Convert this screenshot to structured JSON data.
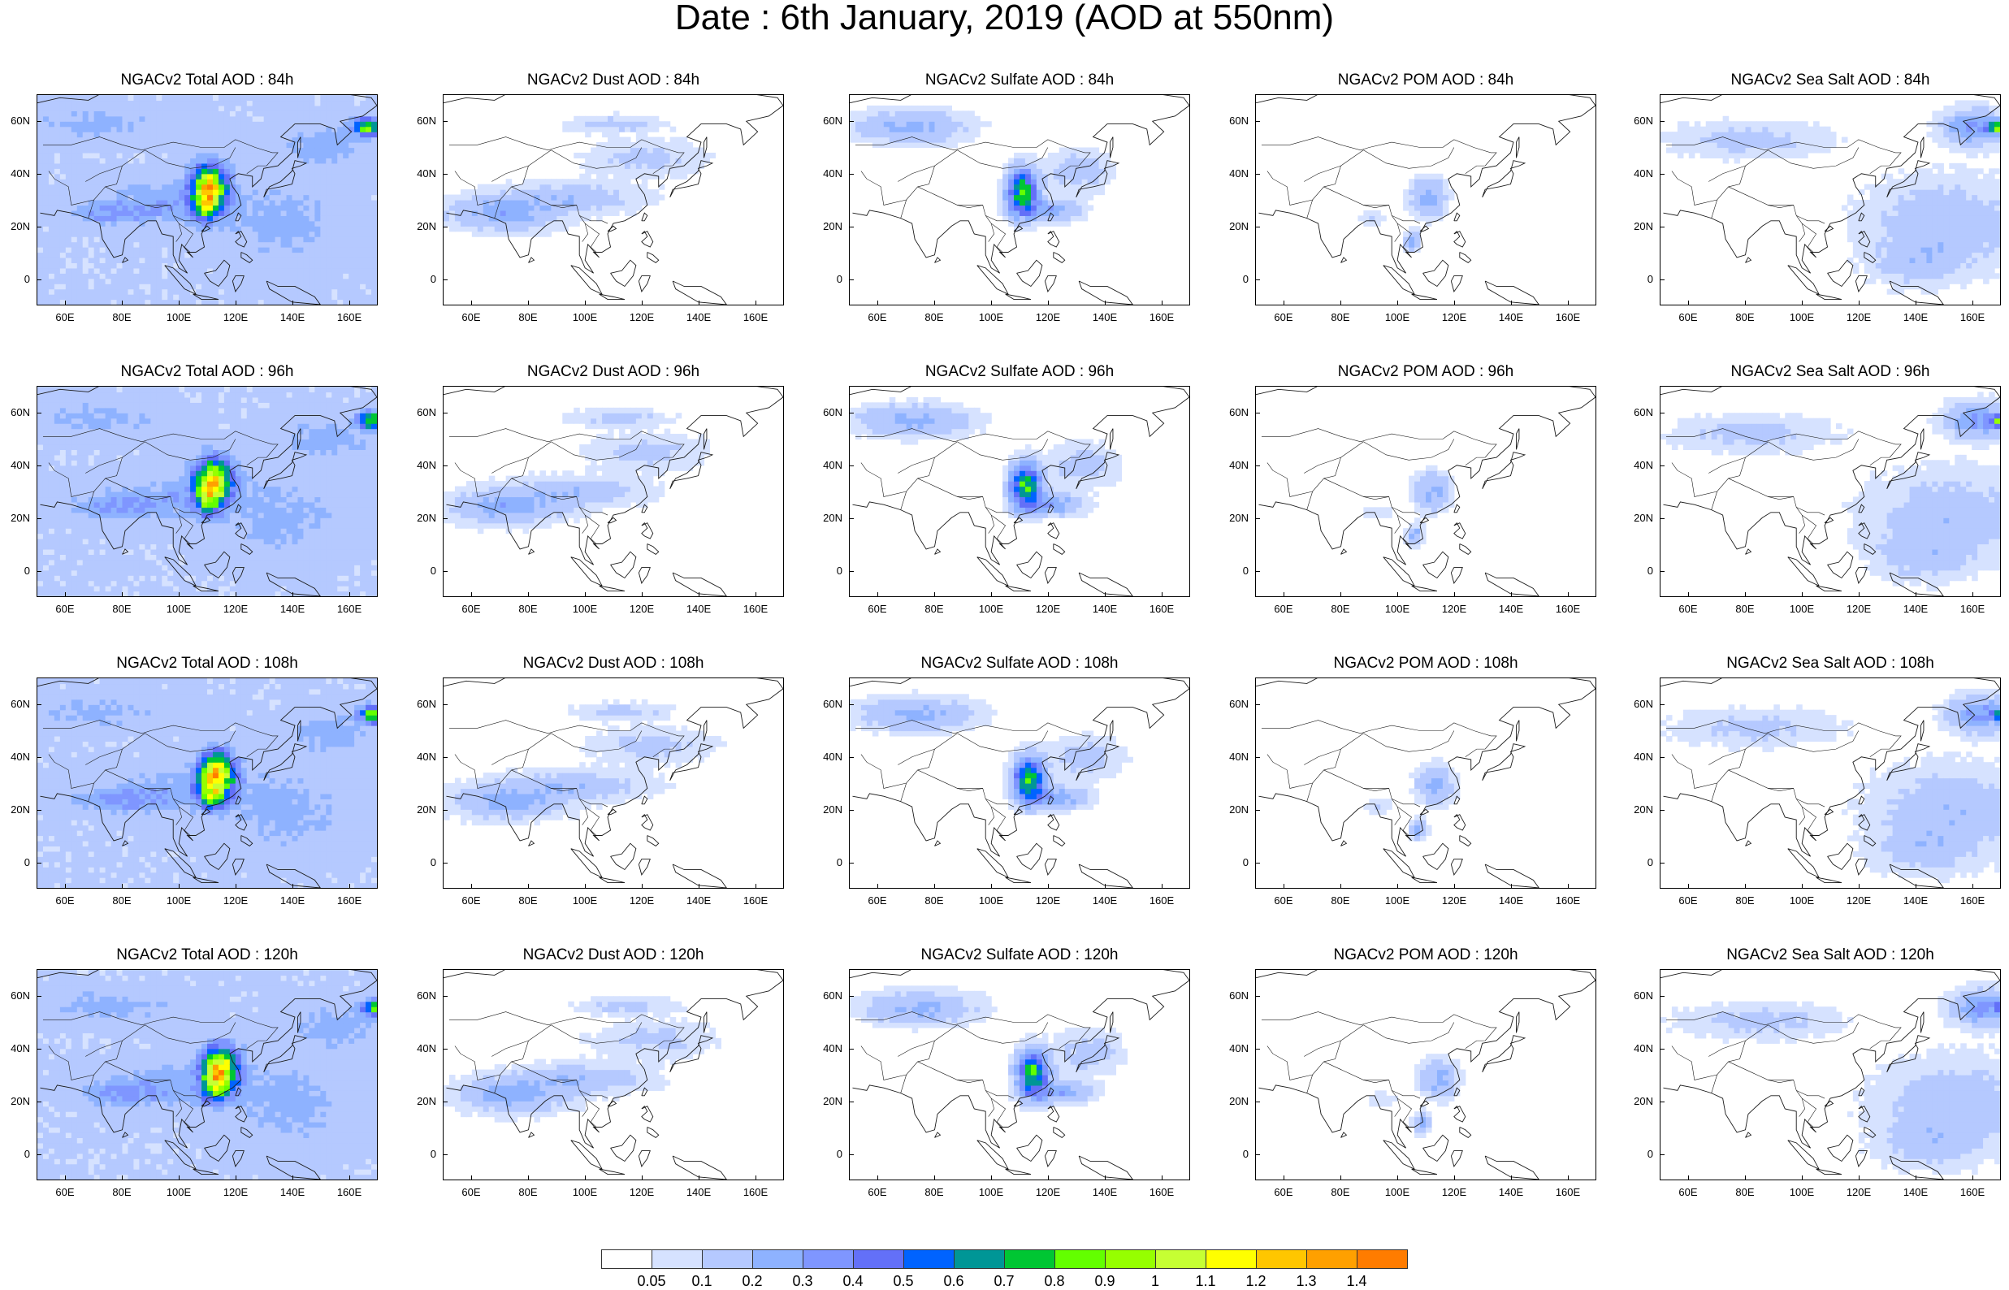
{
  "title": "Date : 6th January, 2019 (AOD at 550nm)",
  "lat_ticks": [
    "60N",
    "40N",
    "20N",
    "0"
  ],
  "lon_ticks": [
    "60E",
    "80E",
    "100E",
    "120E",
    "140E",
    "160E"
  ],
  "panels": [
    {
      "title": "NGACv2 Total AOD : 84h",
      "species": "total",
      "hour": 84
    },
    {
      "title": "NGACv2 Dust AOD : 84h",
      "species": "dust",
      "hour": 84
    },
    {
      "title": "NGACv2 Sulfate AOD : 84h",
      "species": "sulfate",
      "hour": 84
    },
    {
      "title": "NGACv2 POM AOD : 84h",
      "species": "pom",
      "hour": 84
    },
    {
      "title": "NGACv2 Sea Salt AOD : 84h",
      "species": "seasalt",
      "hour": 84
    },
    {
      "title": "NGACv2 Total AOD : 96h",
      "species": "total",
      "hour": 96
    },
    {
      "title": "NGACv2 Dust AOD : 96h",
      "species": "dust",
      "hour": 96
    },
    {
      "title": "NGACv2 Sulfate AOD : 96h",
      "species": "sulfate",
      "hour": 96
    },
    {
      "title": "NGACv2 POM AOD : 96h",
      "species": "pom",
      "hour": 96
    },
    {
      "title": "NGACv2 Sea Salt AOD : 96h",
      "species": "seasalt",
      "hour": 96
    },
    {
      "title": "NGACv2 Total AOD : 108h",
      "species": "total",
      "hour": 108
    },
    {
      "title": "NGACv2 Dust AOD : 108h",
      "species": "dust",
      "hour": 108
    },
    {
      "title": "NGACv2 Sulfate AOD : 108h",
      "species": "sulfate",
      "hour": 108
    },
    {
      "title": "NGACv2 POM AOD : 108h",
      "species": "pom",
      "hour": 108
    },
    {
      "title": "NGACv2 Sea Salt AOD : 108h",
      "species": "seasalt",
      "hour": 108
    },
    {
      "title": "NGACv2 Total AOD : 120h",
      "species": "total",
      "hour": 120
    },
    {
      "title": "NGACv2 Dust AOD : 120h",
      "species": "dust",
      "hour": 120
    },
    {
      "title": "NGACv2 Sulfate AOD : 120h",
      "species": "sulfate",
      "hour": 120
    },
    {
      "title": "NGACv2 POM AOD : 120h",
      "species": "pom",
      "hour": 120
    },
    {
      "title": "NGACv2 Sea Salt  AOD : 120h",
      "species": "seasalt",
      "hour": 120
    }
  ],
  "colorbar": {
    "colors": [
      "#ffffff",
      "#d6e2ff",
      "#b5c9ff",
      "#8eb2ff",
      "#7f96ff",
      "#6370f8",
      "#0063ff",
      "#009696",
      "#00c633",
      "#63ff00",
      "#96ff00",
      "#c6ff33",
      "#ffff00",
      "#ffc600",
      "#ffa000",
      "#ff7c00",
      "#ff1900"
    ],
    "labels": [
      "0.05",
      "0.1",
      "0.2",
      "0.3",
      "0.4",
      "0.5",
      "0.6",
      "0.7",
      "0.8",
      "0.9",
      "1",
      "1.1",
      "1.2",
      "1.3",
      "1.4"
    ]
  }
}
